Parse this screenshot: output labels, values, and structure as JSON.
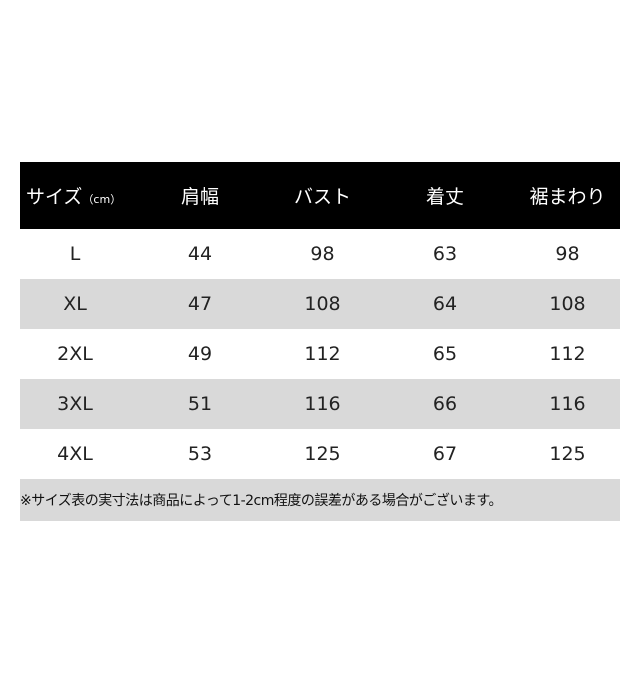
{
  "table": {
    "headers": [
      "サイズ",
      "肩幅",
      "バスト",
      "着丈",
      "裾まわり"
    ],
    "unit": "（cm）",
    "rows": [
      [
        "L",
        "44",
        "98",
        "63",
        "98"
      ],
      [
        "XL",
        "47",
        "108",
        "64",
        "108"
      ],
      [
        "2XL",
        "49",
        "112",
        "65",
        "112"
      ],
      [
        "3XL",
        "51",
        "116",
        "66",
        "116"
      ],
      [
        "4XL",
        "53",
        "125",
        "67",
        "125"
      ]
    ],
    "note": "※サイズ表の実寸法は商品によって1-2cm程度の誤差がある場合がございます。"
  },
  "colors": {
    "header_bg": "#000000",
    "alt_row_bg": "#d9d9d9"
  }
}
